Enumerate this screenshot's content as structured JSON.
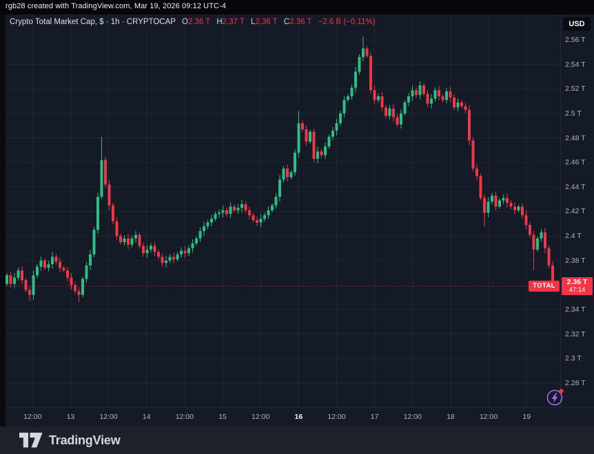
{
  "attribution": {
    "text": "rgb28 created with TradingView.com, Mar 19, 2026 09:12 UTC-4"
  },
  "header": {
    "symbol_title": "Crypto Total Market Cap, $ · 1h · CRYPTOCAP",
    "ohlc": {
      "o_label": "O",
      "o": "2.36 T",
      "h_label": "H",
      "h": "2.37 T",
      "l_label": "L",
      "l": "2.36 T",
      "c_label": "C",
      "c": "2.36 T",
      "change": "−2.6 B (−0.11%)"
    },
    "currency_button": "USD"
  },
  "price_axis": {
    "ticks": [
      {
        "value": 2.56,
        "label": "2.56 T"
      },
      {
        "value": 2.54,
        "label": "2.54 T"
      },
      {
        "value": 2.52,
        "label": "2.52 T"
      },
      {
        "value": 2.5,
        "label": "2.5 T"
      },
      {
        "value": 2.48,
        "label": "2.48 T"
      },
      {
        "value": 2.46,
        "label": "2.46 T"
      },
      {
        "value": 2.44,
        "label": "2.44 T"
      },
      {
        "value": 2.42,
        "label": "2.42 T"
      },
      {
        "value": 2.4,
        "label": "2.4 T"
      },
      {
        "value": 2.38,
        "label": "2.38 T"
      },
      {
        "value": 2.34,
        "label": "2.34 T"
      },
      {
        "value": 2.32,
        "label": "2.32 T"
      },
      {
        "value": 2.3,
        "label": "2.3 T"
      },
      {
        "value": 2.28,
        "label": "2.28 T"
      }
    ],
    "last_price_badge": {
      "price": "2.36 T",
      "countdown": "47:14",
      "color": "#f23645"
    }
  },
  "time_axis": {
    "ticks": [
      {
        "label": "12:00"
      },
      {
        "label": "13"
      },
      {
        "label": "12:00"
      },
      {
        "label": "14"
      },
      {
        "label": "12:00"
      },
      {
        "label": "15"
      },
      {
        "label": "12:00"
      },
      {
        "label": "16",
        "strong": true
      },
      {
        "label": "12:00"
      },
      {
        "label": "17"
      },
      {
        "label": "12:00"
      },
      {
        "label": "18"
      },
      {
        "label": "12:00"
      },
      {
        "label": "19"
      }
    ]
  },
  "price_line": {
    "label": "TOTAL"
  },
  "chart_data": {
    "type": "candlestick",
    "title": "Crypto Total Market Cap (CRYPTOCAP), 1h",
    "unit": "trillion USD",
    "ylim": [
      2.26,
      2.567
    ],
    "grid": true,
    "legend_position": "top-left",
    "colors": {
      "up": "#2ebd85",
      "down": "#f23645"
    },
    "first_open": 2.361,
    "closes": [
      2.368,
      2.361,
      2.366,
      2.372,
      2.364,
      2.356,
      2.352,
      2.368,
      2.375,
      2.38,
      2.374,
      2.377,
      2.383,
      2.379,
      2.374,
      2.372,
      2.366,
      2.36,
      2.355,
      2.352,
      2.365,
      2.376,
      2.385,
      2.405,
      2.432,
      2.462,
      2.442,
      2.425,
      2.412,
      2.4,
      2.395,
      2.398,
      2.393,
      2.398,
      2.401,
      2.392,
      2.386,
      2.389,
      2.392,
      2.387,
      2.383,
      2.378,
      2.38,
      2.383,
      2.381,
      2.385,
      2.388,
      2.386,
      2.39,
      2.394,
      2.398,
      2.404,
      2.408,
      2.411,
      2.414,
      2.418,
      2.419,
      2.421,
      2.418,
      2.424,
      2.421,
      2.423,
      2.426,
      2.421,
      2.417,
      2.413,
      2.411,
      2.414,
      2.417,
      2.421,
      2.425,
      2.432,
      2.446,
      2.455,
      2.448,
      2.452,
      2.468,
      2.492,
      2.487,
      2.477,
      2.485,
      2.463,
      2.469,
      2.466,
      2.473,
      2.481,
      2.486,
      2.492,
      2.5,
      2.511,
      2.514,
      2.521,
      2.534,
      2.546,
      2.553,
      2.547,
      2.519,
      2.511,
      2.514,
      2.505,
      2.498,
      2.504,
      2.497,
      2.491,
      2.5,
      2.509,
      2.514,
      2.519,
      2.515,
      2.523,
      2.516,
      2.508,
      2.512,
      2.519,
      2.514,
      2.511,
      2.518,
      2.513,
      2.505,
      2.509,
      2.506,
      2.503,
      2.478,
      2.455,
      2.449,
      2.431,
      2.419,
      2.428,
      2.433,
      2.424,
      2.429,
      2.431,
      2.427,
      2.424,
      2.421,
      2.424,
      2.417,
      2.409,
      2.401,
      2.389,
      2.398,
      2.403,
      2.39,
      2.376,
      2.359
    ],
    "wick_overrides": {
      "6": {
        "low": 2.347
      },
      "19": {
        "low": 2.346
      },
      "25": {
        "high": 2.481
      },
      "77": {
        "high": 2.502
      },
      "94": {
        "high": 2.563
      },
      "126": {
        "low": 2.408
      },
      "139": {
        "low": 2.372
      },
      "144": {
        "low": 2.355
      }
    },
    "current": {
      "price": 2.359,
      "label": "TOTAL"
    }
  },
  "footer": {
    "brand": "TradingView"
  }
}
